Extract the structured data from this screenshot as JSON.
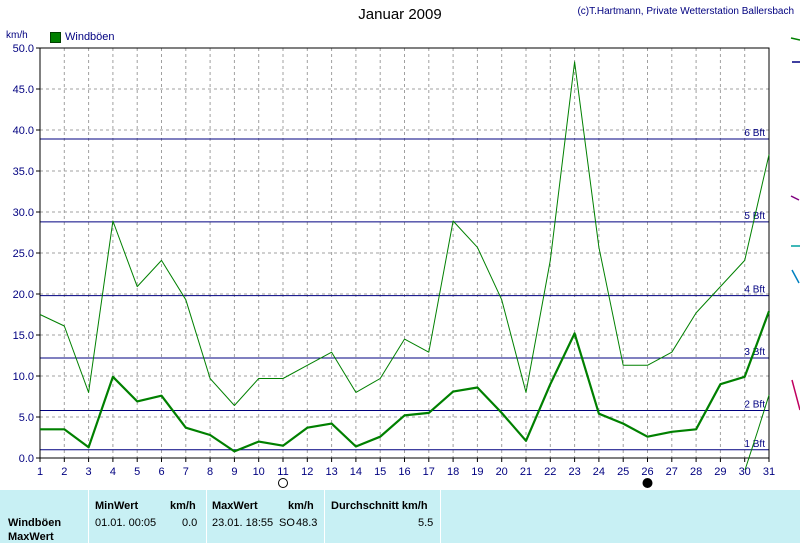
{
  "header": {
    "title": "Januar 2009",
    "copyright": "(c)T.Hartmann, Private Wetterstation Ballersbach"
  },
  "chart_data": {
    "type": "line",
    "ylabel": "km/h",
    "ylim": [
      0,
      50
    ],
    "yticks": [
      "0.0",
      "5.0",
      "10.0",
      "15.0",
      "20.0",
      "25.0",
      "30.0",
      "35.0",
      "40.0",
      "45.0",
      "50.0"
    ],
    "x": [
      1,
      2,
      3,
      4,
      5,
      6,
      7,
      8,
      9,
      10,
      11,
      12,
      13,
      14,
      15,
      16,
      17,
      18,
      19,
      20,
      21,
      22,
      23,
      24,
      25,
      26,
      27,
      28,
      29,
      30,
      31
    ],
    "legend": {
      "label": "Windböen",
      "placement": "top-left"
    },
    "grid": true,
    "series": [
      {
        "name": "Windböen",
        "color": "#008000",
        "values": [
          17.5,
          16.1,
          8.0,
          28.9,
          20.9,
          24.1,
          19.3,
          9.7,
          6.4,
          9.7,
          9.7,
          11.3,
          12.9,
          8.0,
          9.7,
          14.5,
          12.9,
          28.9,
          25.7,
          19.3,
          8.0,
          24.1,
          48.3,
          25.7,
          11.3,
          11.3,
          12.9,
          17.7,
          20.9,
          24.1,
          37.0
        ]
      },
      {
        "color": "#008000",
        "values": [
          3.5,
          3.5,
          1.3,
          9.9,
          6.9,
          7.6,
          3.7,
          2.8,
          0.8,
          2.0,
          1.5,
          3.7,
          4.2,
          1.4,
          2.6,
          5.2,
          5.5,
          8.1,
          8.6,
          5.5,
          2.1,
          9.0,
          15.2,
          5.4,
          4.2,
          2.6,
          3.2,
          3.5,
          9.0,
          9.9,
          17.9
        ]
      }
    ],
    "beaufort": [
      {
        "label": "1 Bft",
        "value": 1.0
      },
      {
        "label": "2 Bft",
        "value": 5.8
      },
      {
        "label": "3 Bft",
        "value": 12.2
      },
      {
        "label": "4 Bft",
        "value": 19.8
      },
      {
        "label": "5 Bft",
        "value": 28.8
      },
      {
        "label": "6 Bft",
        "value": 38.9
      }
    ],
    "moon_phases": [
      {
        "day": 11,
        "phase": "full"
      },
      {
        "day": 26,
        "phase": "new"
      }
    ]
  },
  "stats": {
    "minwert_label": "MinWert",
    "maxwert_label": "MaxWert",
    "unit_label": "km/h",
    "avg_label": "Durchschnitt km/h",
    "row_label": "Windböen",
    "row2_label": "MaxWert",
    "min_time": "01.01.  00:05",
    "min_value": "0.0",
    "max_time": "23.01.  18:55",
    "max_dir": "SO",
    "max_value": "48.3",
    "avg_value": "5.5"
  }
}
